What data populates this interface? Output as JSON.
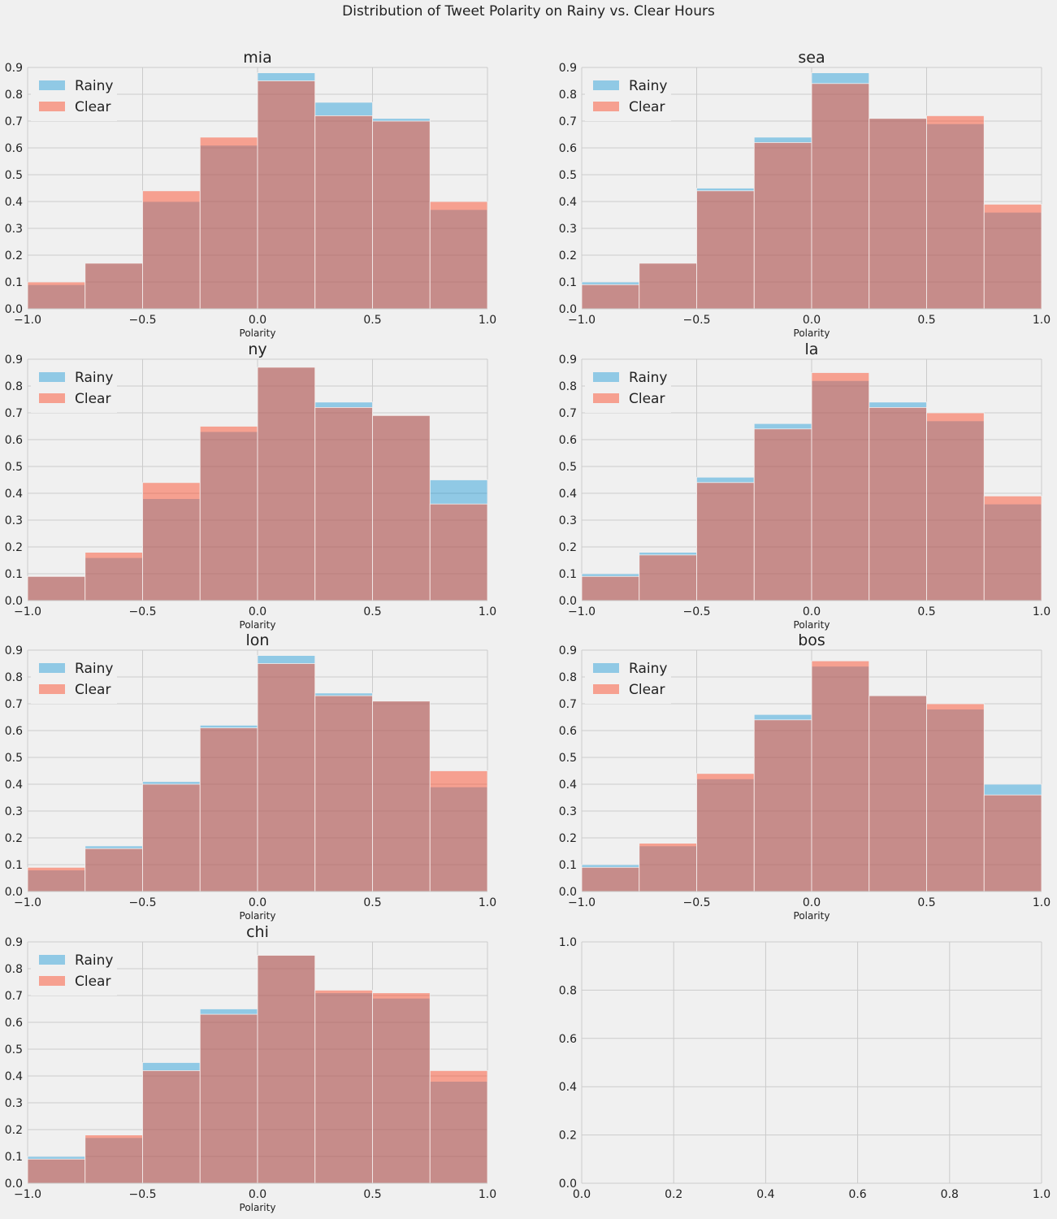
{
  "figure": {
    "title": "Distribution of Tweet Polarity on Rainy vs. Clear Hours",
    "background": "#f0f0f0",
    "grid_color": "#cbcbcb"
  },
  "chart_data": [
    {
      "type": "bar",
      "title": "mia",
      "xlabel": "Polarity",
      "bin_edges": [
        -1.0,
        -0.75,
        -0.5,
        -0.25,
        0.0,
        0.25,
        0.5,
        0.75,
        1.0
      ],
      "xlim": [
        -1.0,
        1.0
      ],
      "ylim": [
        0,
        0.9
      ],
      "grid": true,
      "legend": "top-left",
      "xticks": [
        "−1.0",
        "−0.5",
        "0.0",
        "0.5",
        "1.0"
      ],
      "yticks": [
        "0.0",
        "0.1",
        "0.2",
        "0.3",
        "0.4",
        "0.5",
        "0.6",
        "0.7",
        "0.8",
        "0.9"
      ],
      "series": [
        {
          "name": "Rainy",
          "color": "#008fd5",
          "alpha": 0.4,
          "values": [
            0.09,
            0.17,
            0.4,
            0.61,
            0.88,
            0.77,
            0.71,
            0.37
          ]
        },
        {
          "name": "Clear",
          "color": "#fc4f30",
          "alpha": 0.5,
          "values": [
            0.1,
            0.17,
            0.44,
            0.64,
            0.85,
            0.72,
            0.7,
            0.4
          ]
        }
      ]
    },
    {
      "type": "bar",
      "title": "sea",
      "xlabel": "Polarity",
      "bin_edges": [
        -1.0,
        -0.75,
        -0.5,
        -0.25,
        0.0,
        0.25,
        0.5,
        0.75,
        1.0
      ],
      "xlim": [
        -1.0,
        1.0
      ],
      "ylim": [
        0,
        0.9
      ],
      "grid": true,
      "legend": "top-left",
      "xticks": [
        "−1.0",
        "−0.5",
        "0.0",
        "0.5",
        "1.0"
      ],
      "yticks": [
        "0.0",
        "0.1",
        "0.2",
        "0.3",
        "0.4",
        "0.5",
        "0.6",
        "0.7",
        "0.8",
        "0.9"
      ],
      "series": [
        {
          "name": "Rainy",
          "color": "#008fd5",
          "alpha": 0.4,
          "values": [
            0.1,
            0.17,
            0.45,
            0.64,
            0.88,
            0.71,
            0.69,
            0.36
          ]
        },
        {
          "name": "Clear",
          "color": "#fc4f30",
          "alpha": 0.5,
          "values": [
            0.09,
            0.17,
            0.44,
            0.62,
            0.84,
            0.71,
            0.72,
            0.39
          ]
        }
      ]
    },
    {
      "type": "bar",
      "title": "ny",
      "xlabel": "Polarity",
      "bin_edges": [
        -1.0,
        -0.75,
        -0.5,
        -0.25,
        0.0,
        0.25,
        0.5,
        0.75,
        1.0
      ],
      "xlim": [
        -1.0,
        1.0
      ],
      "ylim": [
        0,
        0.9
      ],
      "grid": true,
      "legend": "top-left",
      "xticks": [
        "−1.0",
        "−0.5",
        "0.0",
        "0.5",
        "1.0"
      ],
      "yticks": [
        "0.0",
        "0.1",
        "0.2",
        "0.3",
        "0.4",
        "0.5",
        "0.6",
        "0.7",
        "0.8",
        "0.9"
      ],
      "series": [
        {
          "name": "Rainy",
          "color": "#008fd5",
          "alpha": 0.4,
          "values": [
            0.09,
            0.16,
            0.38,
            0.63,
            0.87,
            0.74,
            0.69,
            0.45
          ]
        },
        {
          "name": "Clear",
          "color": "#fc4f30",
          "alpha": 0.5,
          "values": [
            0.09,
            0.18,
            0.44,
            0.65,
            0.87,
            0.72,
            0.69,
            0.36
          ]
        }
      ]
    },
    {
      "type": "bar",
      "title": "la",
      "xlabel": "Polarity",
      "bin_edges": [
        -1.0,
        -0.75,
        -0.5,
        -0.25,
        0.0,
        0.25,
        0.5,
        0.75,
        1.0
      ],
      "xlim": [
        -1.0,
        1.0
      ],
      "ylim": [
        0,
        0.9
      ],
      "grid": true,
      "legend": "top-left",
      "xticks": [
        "−1.0",
        "−0.5",
        "0.0",
        "0.5",
        "1.0"
      ],
      "yticks": [
        "0.0",
        "0.1",
        "0.2",
        "0.3",
        "0.4",
        "0.5",
        "0.6",
        "0.7",
        "0.8",
        "0.9"
      ],
      "series": [
        {
          "name": "Rainy",
          "color": "#008fd5",
          "alpha": 0.4,
          "values": [
            0.1,
            0.18,
            0.46,
            0.66,
            0.82,
            0.74,
            0.67,
            0.36
          ]
        },
        {
          "name": "Clear",
          "color": "#fc4f30",
          "alpha": 0.5,
          "values": [
            0.09,
            0.17,
            0.44,
            0.64,
            0.85,
            0.72,
            0.7,
            0.39
          ]
        }
      ]
    },
    {
      "type": "bar",
      "title": "lon",
      "xlabel": "Polarity",
      "bin_edges": [
        -1.0,
        -0.75,
        -0.5,
        -0.25,
        0.0,
        0.25,
        0.5,
        0.75,
        1.0
      ],
      "xlim": [
        -1.0,
        1.0
      ],
      "ylim": [
        0,
        0.9
      ],
      "grid": true,
      "legend": "top-left",
      "xticks": [
        "−1.0",
        "−0.5",
        "0.0",
        "0.5",
        "1.0"
      ],
      "yticks": [
        "0.0",
        "0.1",
        "0.2",
        "0.3",
        "0.4",
        "0.5",
        "0.6",
        "0.7",
        "0.8",
        "0.9"
      ],
      "series": [
        {
          "name": "Rainy",
          "color": "#008fd5",
          "alpha": 0.4,
          "values": [
            0.08,
            0.17,
            0.41,
            0.62,
            0.88,
            0.74,
            0.71,
            0.39
          ]
        },
        {
          "name": "Clear",
          "color": "#fc4f30",
          "alpha": 0.5,
          "values": [
            0.09,
            0.16,
            0.4,
            0.61,
            0.85,
            0.73,
            0.71,
            0.45
          ]
        }
      ]
    },
    {
      "type": "bar",
      "title": "bos",
      "xlabel": "Polarity",
      "bin_edges": [
        -1.0,
        -0.75,
        -0.5,
        -0.25,
        0.0,
        0.25,
        0.5,
        0.75,
        1.0
      ],
      "xlim": [
        -1.0,
        1.0
      ],
      "ylim": [
        0,
        0.9
      ],
      "grid": true,
      "legend": "top-left",
      "xticks": [
        "−1.0",
        "−0.5",
        "0.0",
        "0.5",
        "1.0"
      ],
      "yticks": [
        "0.0",
        "0.1",
        "0.2",
        "0.3",
        "0.4",
        "0.5",
        "0.6",
        "0.7",
        "0.8",
        "0.9"
      ],
      "series": [
        {
          "name": "Rainy",
          "color": "#008fd5",
          "alpha": 0.4,
          "values": [
            0.1,
            0.17,
            0.42,
            0.66,
            0.84,
            0.73,
            0.68,
            0.4
          ]
        },
        {
          "name": "Clear",
          "color": "#fc4f30",
          "alpha": 0.5,
          "values": [
            0.09,
            0.18,
            0.44,
            0.64,
            0.86,
            0.73,
            0.7,
            0.36
          ]
        }
      ]
    },
    {
      "type": "bar",
      "title": "chi",
      "xlabel": "Polarity",
      "bin_edges": [
        -1.0,
        -0.75,
        -0.5,
        -0.25,
        0.0,
        0.25,
        0.5,
        0.75,
        1.0
      ],
      "xlim": [
        -1.0,
        1.0
      ],
      "ylim": [
        0,
        0.9
      ],
      "grid": true,
      "legend": "top-left",
      "xticks": [
        "−1.0",
        "−0.5",
        "0.0",
        "0.5",
        "1.0"
      ],
      "yticks": [
        "0.0",
        "0.1",
        "0.2",
        "0.3",
        "0.4",
        "0.5",
        "0.6",
        "0.7",
        "0.8",
        "0.9"
      ],
      "series": [
        {
          "name": "Rainy",
          "color": "#008fd5",
          "alpha": 0.4,
          "values": [
            0.1,
            0.17,
            0.45,
            0.65,
            0.85,
            0.71,
            0.69,
            0.38
          ]
        },
        {
          "name": "Clear",
          "color": "#fc4f30",
          "alpha": 0.5,
          "values": [
            0.09,
            0.18,
            0.42,
            0.63,
            0.85,
            0.72,
            0.71,
            0.42
          ]
        }
      ]
    },
    {
      "type": "bar",
      "title": "",
      "xlabel": "",
      "xlim": [
        0,
        1
      ],
      "ylim": [
        0,
        1
      ],
      "grid": true,
      "xticks": [
        "0.0",
        "0.2",
        "0.4",
        "0.6",
        "0.8",
        "1.0"
      ],
      "yticks": [
        "0.0",
        "0.2",
        "0.4",
        "0.6",
        "0.8",
        "1.0"
      ],
      "series": []
    }
  ]
}
